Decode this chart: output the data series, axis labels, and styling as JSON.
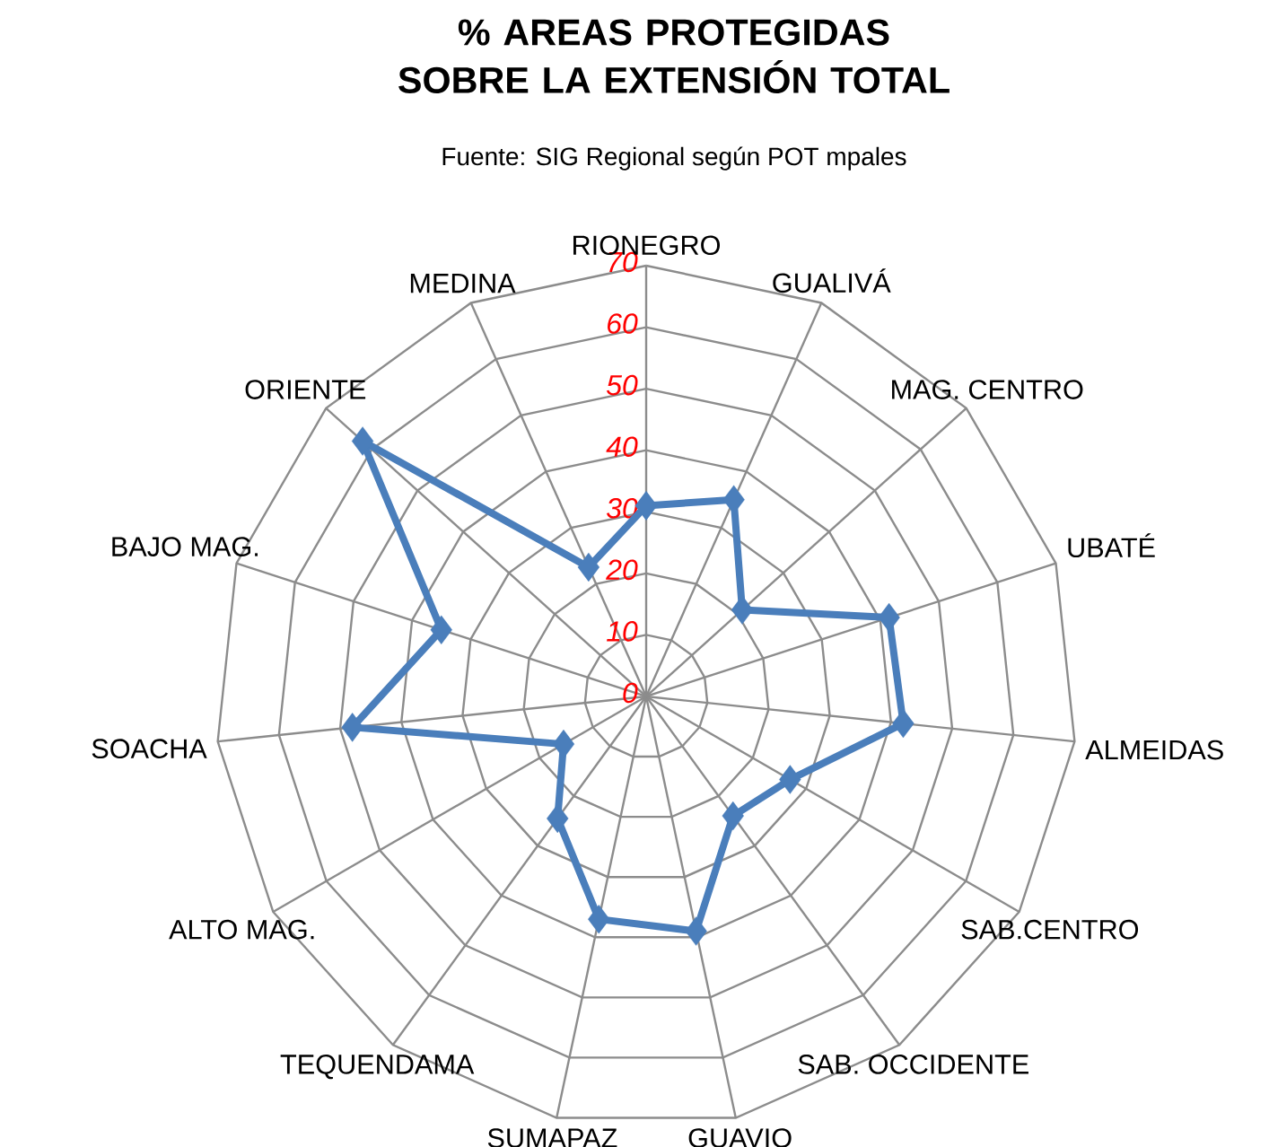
{
  "chart_data": {
    "type": "radar",
    "title": "% AREAS PROTEGIDAS SOBRE LA EXTENSIÓN TOTAL",
    "subtitle": "Fuente: SIG Regional según POT mpales",
    "categories": [
      "RIONEGRO",
      "GUALIVÁ",
      "MAG. CENTRO",
      "UBATÉ",
      "ALMEIDAS",
      "SAB.CENTRO",
      "SAB. OCCIDENTE",
      "GUAVIO",
      "SUMAPAZ",
      "TEQUENDAMA",
      "ALTO MAG.",
      "SOACHA",
      "BAJO MAG.",
      "ORIENTE",
      "MEDINA"
    ],
    "series": [
      {
        "color": "#4a7ebb",
        "values": [
          31,
          35,
          21,
          41.5,
          42,
          27,
          24,
          39,
          37,
          24.5,
          15.5,
          48,
          35,
          62,
          23
        ]
      }
    ],
    "ylim": [
      0,
      70
    ],
    "yticks": [
      0,
      10,
      20,
      30,
      40,
      50,
      60,
      70
    ],
    "grid": true,
    "marker": "diamond",
    "line_style": "solid"
  }
}
